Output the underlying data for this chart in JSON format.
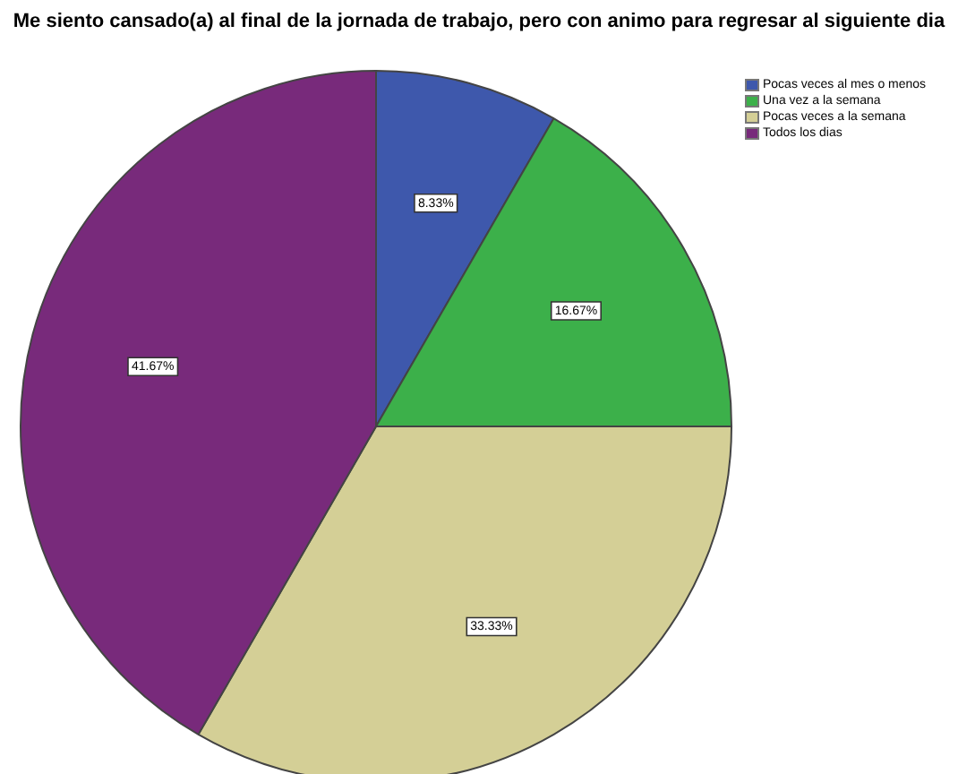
{
  "chart_data": {
    "type": "pie",
    "title": "Me siento cansado(a) al final de la jornada de trabajo, pero con animo para regresar al siguiente dia",
    "categories": [
      "Pocas veces al mes o menos",
      "Una vez a la semana",
      "Pocas veces a la semana",
      "Todos los dias"
    ],
    "values": [
      8.33,
      16.67,
      33.33,
      41.67
    ],
    "colors": [
      "#3e58ac",
      "#3cb04a",
      "#d4cf96",
      "#782a7b"
    ],
    "value_labels": [
      "8.33%",
      "16.67%",
      "33.33%",
      "41.67%"
    ],
    "legend": "top right"
  }
}
